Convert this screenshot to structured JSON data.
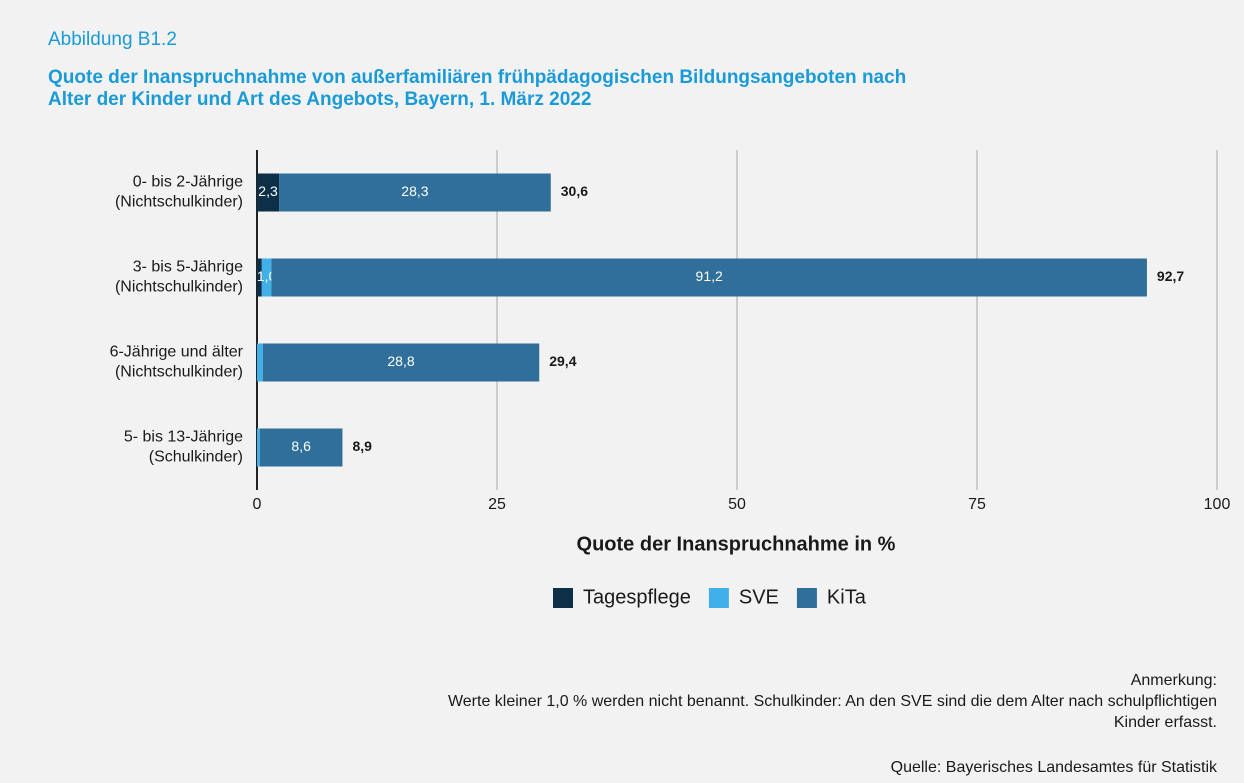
{
  "header": "Abbildung B1.2",
  "chart_data": {
    "type": "stacked_barh",
    "title": [
      "Quote der Inanspruchnahme von außerfamiliären frühpädagogischen Bildungsangeboten nach",
      "Alter der Kinder und Art des Angebots, Bayern, 1. März 2022"
    ],
    "categories": [
      [
        "0- bis 2-Jährige",
        "(Nichtschulkinder)"
      ],
      [
        "3- bis 5-Jährige",
        "(Nichtschulkinder)"
      ],
      [
        "6-Jährige und älter",
        "(Nichtschulkinder)"
      ],
      [
        "5- bis 13-Jährige",
        "(Schulkinder)"
      ]
    ],
    "series": [
      {
        "name": "Tagespflege",
        "color": "#0d3048",
        "values": [
          2.3,
          0.5,
          0,
          0
        ],
        "value_labels": [
          "2,3",
          null,
          null,
          null
        ]
      },
      {
        "name": "SVE",
        "color": "#41b0e8",
        "values": [
          0,
          1.0,
          0.6,
          0.3
        ],
        "value_labels": [
          null,
          "1,0",
          null,
          null
        ]
      },
      {
        "name": "KiTa",
        "color": "#2f6f99",
        "values": [
          28.3,
          91.2,
          28.8,
          8.6
        ],
        "value_labels": [
          "28,3",
          "91,2",
          "28,8",
          "8,6"
        ]
      }
    ],
    "totals": [
      30.6,
      92.7,
      29.4,
      8.9
    ],
    "total_labels": [
      "30,6",
      "92,7",
      "29,4",
      "8,9"
    ],
    "xlim": [
      0,
      100
    ],
    "xticks": [
      0,
      25,
      50,
      75,
      100
    ],
    "grid": true,
    "xlabel": "Quote der Inanspruchnahme in %",
    "legend": "bottom"
  },
  "note": {
    "title": "Anmerkung:",
    "lines": [
      "Werte kleiner 1,0 % werden nicht benannt. Schulkinder: An den SVE sind die dem Alter nach schulpflichtigen",
      "Kinder erfasst."
    ]
  },
  "source": "Quelle: Bayerisches Landesamtes für Statistik"
}
